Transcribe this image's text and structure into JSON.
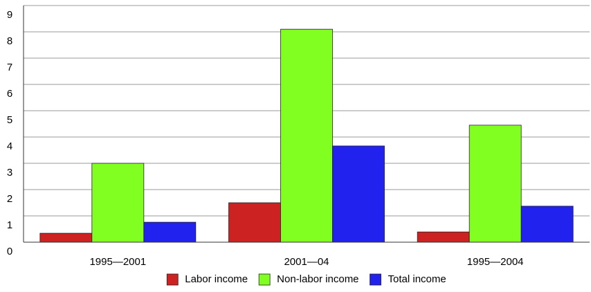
{
  "chart_data": {
    "type": "bar",
    "categories": [
      "1995—2001",
      "2001—04",
      "1995—2004"
    ],
    "series": [
      {
        "name": "Labor income",
        "color": "#cc2222",
        "values": [
          0.34,
          1.5,
          0.39
        ]
      },
      {
        "name": "Non-labor income",
        "color": "#80ff20",
        "values": [
          3.0,
          8.1,
          4.45
        ]
      },
      {
        "name": "Total income",
        "color": "#2222ee",
        "values": [
          0.76,
          3.66,
          1.37
        ]
      }
    ],
    "ylim": [
      0,
      9
    ],
    "yticks": [
      0,
      1,
      2,
      3,
      4,
      5,
      6,
      7,
      8,
      9
    ],
    "grid": true,
    "legend": "bottom"
  }
}
